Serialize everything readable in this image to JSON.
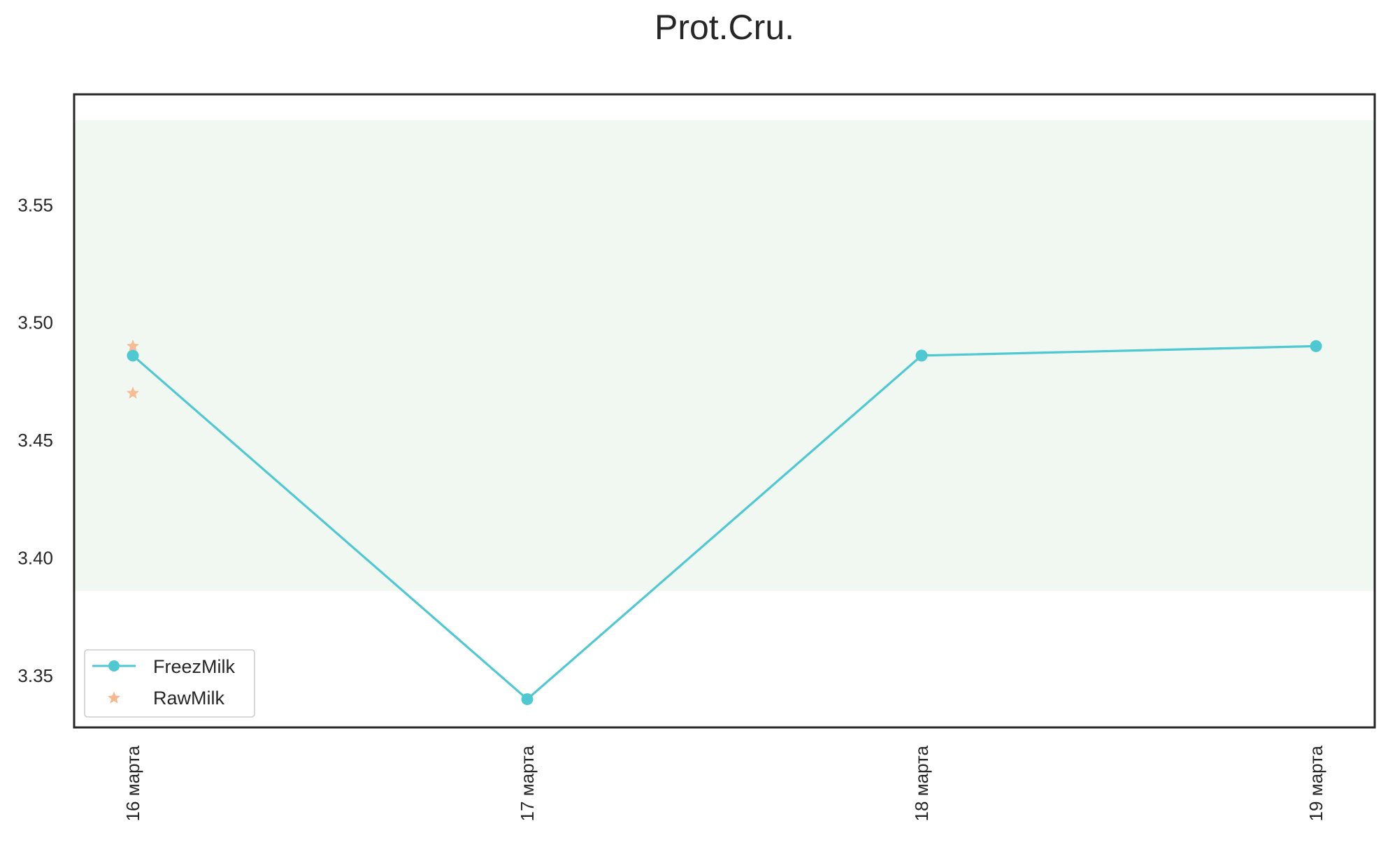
{
  "chart_data": {
    "type": "line",
    "title": "Prot.Cru.",
    "xlabel": "",
    "ylabel": "",
    "categories": [
      "16 марта",
      "17 марта",
      "18 марта",
      "19 марта"
    ],
    "ylim": [
      3.328,
      3.597
    ],
    "yticks": [
      3.35,
      3.4,
      3.45,
      3.5,
      3.55
    ],
    "ytick_labels": [
      "3.35",
      "3.40",
      "3.45",
      "3.50",
      "3.55"
    ],
    "band": {
      "y0": 3.386,
      "y1": 3.586,
      "color": "#f0f8f1"
    },
    "grid": false,
    "legend_position": "lower-left",
    "series": [
      {
        "name": "FreezMilk",
        "kind": "line-marker",
        "color": "#4fc8d1",
        "points": [
          {
            "x": "16 марта",
            "y": 3.486
          },
          {
            "x": "17 марта",
            "y": 3.34
          },
          {
            "x": "18 марта",
            "y": 3.486
          },
          {
            "x": "19 марта",
            "y": 3.49
          }
        ]
      },
      {
        "name": "RawMilk",
        "kind": "scatter-star",
        "color": "#f7b88e",
        "points": [
          {
            "x": "16 марта",
            "y": 3.49
          },
          {
            "x": "16 марта",
            "y": 3.47
          }
        ]
      }
    ]
  }
}
